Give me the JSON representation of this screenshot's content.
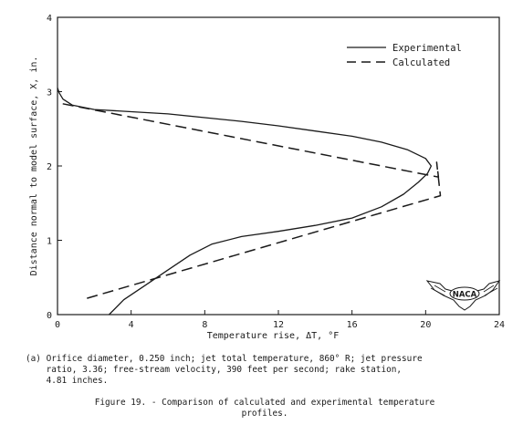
{
  "chart_data": {
    "type": "line",
    "title": "",
    "xlabel": "Temperature rise, ΔT, °F",
    "ylabel": "Distance normal to model surface, X, in.",
    "xlim": [
      0,
      24
    ],
    "ylim": [
      0,
      4
    ],
    "xticks": [
      "0",
      "4",
      "8",
      "12",
      "16",
      "20",
      "24"
    ],
    "yticks": [
      "0",
      "1",
      "2",
      "3",
      "4"
    ],
    "legend_position": "top-right",
    "grid": false,
    "series": [
      {
        "name": "Experimental",
        "style": "solid",
        "x": [
          2.8,
          3.6,
          4.8,
          6.0,
          7.2,
          8.4,
          10.0,
          12.0,
          14.0,
          16.0,
          17.6,
          18.8,
          19.6,
          20.1,
          20.3,
          20.0,
          19.0,
          17.6,
          16.0,
          14.0,
          12.0,
          10.0,
          8.0,
          6.0,
          4.0,
          2.0,
          0.8,
          0.3,
          0.1,
          0.0
        ],
        "y": [
          0.0,
          0.2,
          0.4,
          0.6,
          0.8,
          0.95,
          1.05,
          1.12,
          1.2,
          1.3,
          1.45,
          1.62,
          1.78,
          1.9,
          2.0,
          2.1,
          2.22,
          2.32,
          2.4,
          2.47,
          2.54,
          2.6,
          2.65,
          2.7,
          2.73,
          2.76,
          2.82,
          2.9,
          2.98,
          3.05
        ]
      },
      {
        "name": "Calculated",
        "style": "dashed",
        "x": [
          1.6,
          20.8,
          20.6,
          20.7,
          0.0
        ],
        "y": [
          0.22,
          1.6,
          2.05,
          1.85,
          2.85
        ]
      }
    ],
    "annotations": [
      "NACA"
    ]
  },
  "captions": {
    "part_a": "(a) Orifice diameter, 0.250 inch; jet total temperature, 860° R; jet pressure\n    ratio, 3.36; free-stream velocity, 390 feet per second; rake station,\n    4.81 inches.",
    "figure": "Figure 19. - Comparison of calculated and experimental temperature\nprofiles."
  }
}
